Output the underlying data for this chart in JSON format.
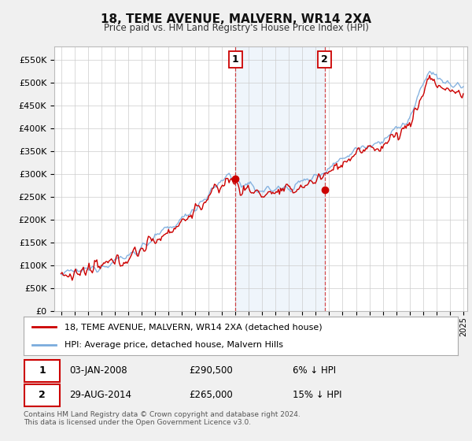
{
  "title": "18, TEME AVENUE, MALVERN, WR14 2XA",
  "subtitle": "Price paid vs. HM Land Registry's House Price Index (HPI)",
  "property_label": "18, TEME AVENUE, MALVERN, WR14 2XA (detached house)",
  "hpi_label": "HPI: Average price, detached house, Malvern Hills",
  "sale1_date": "03-JAN-2008",
  "sale1_price": 290500,
  "sale1_pct": "6% ↓ HPI",
  "sale2_date": "29-AUG-2014",
  "sale2_price": 265000,
  "sale2_pct": "15% ↓ HPI",
  "footer": "Contains HM Land Registry data © Crown copyright and database right 2024.\nThis data is licensed under the Open Government Licence v3.0.",
  "property_color": "#cc0000",
  "hpi_color": "#7aabdd",
  "ylim": [
    0,
    580000
  ],
  "sale1_x": 2008.01,
  "sale2_x": 2014.66,
  "vline_color": "#cc0000",
  "shade_color": "#ddeeff",
  "bg_color": "#f0f0f0",
  "plot_bg": "#ffffff"
}
